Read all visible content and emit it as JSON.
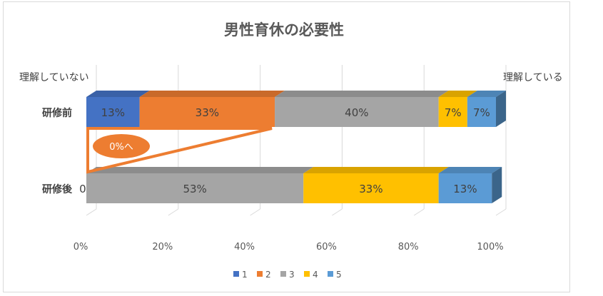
{
  "chart_data": {
    "type": "bar",
    "orientation": "horizontal",
    "stacked": "100%",
    "title": "男性育休の必要性",
    "left_caption": "理解していない",
    "right_caption": "理解している",
    "categories": [
      "研修前",
      "研修後"
    ],
    "series": [
      {
        "name": "1",
        "color": "#4472C4",
        "values": [
          13,
          0
        ],
        "labels": [
          "13%",
          "0%"
        ]
      },
      {
        "name": "2",
        "color": "#ED7D31",
        "values": [
          33,
          0
        ],
        "labels": [
          "33%",
          ""
        ]
      },
      {
        "name": "3",
        "color": "#A5A5A5",
        "values": [
          40,
          53
        ],
        "labels": [
          "40%",
          "53%"
        ]
      },
      {
        "name": "4",
        "color": "#FFC000",
        "values": [
          7,
          33
        ],
        "labels": [
          "7%",
          "33%"
        ]
      },
      {
        "name": "5",
        "color": "#5B9BD5",
        "values": [
          7,
          13
        ],
        "labels": [
          "7%",
          "13%"
        ]
      }
    ],
    "xlim": [
      0,
      100
    ],
    "xticks": [
      "0%",
      "20%",
      "40%",
      "60%",
      "80%",
      "100%"
    ],
    "gridlines": true,
    "legend_position": "bottom",
    "annotation": {
      "text": "0%へ",
      "color": "#ED7D31"
    }
  }
}
